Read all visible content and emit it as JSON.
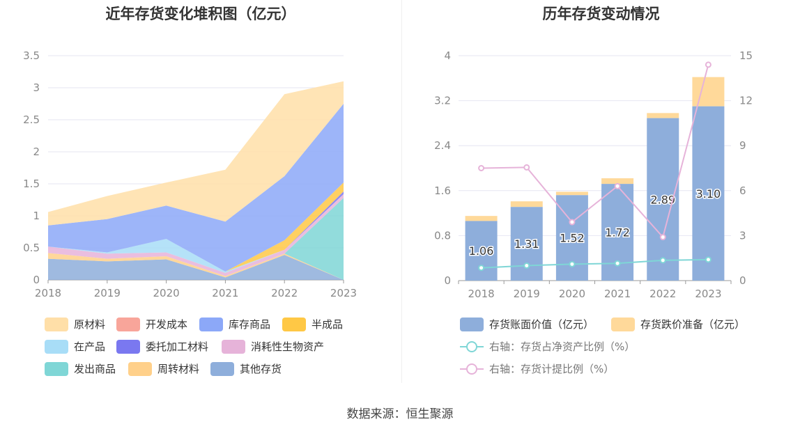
{
  "footer": "数据来源：恒生聚源",
  "chart_data": [
    {
      "type": "area",
      "stacked": true,
      "title": "近年存货变化堆积图（亿元）",
      "x": [
        "2018",
        "2019",
        "2020",
        "2021",
        "2022",
        "2023"
      ],
      "ylim": [
        0,
        3.5
      ],
      "yticks": [
        "0",
        "0.5",
        "1",
        "1.5",
        "2",
        "2.5",
        "3",
        "3.5"
      ],
      "grid": true,
      "legend_position": "bottom",
      "series": [
        {
          "name": "其他存货",
          "color": "#8EAEDB",
          "values": [
            0.33,
            0.29,
            0.32,
            0.04,
            0.39,
            0.0
          ]
        },
        {
          "name": "周转材料",
          "color": "#FFD08A",
          "values": [
            0.09,
            0.04,
            0.05,
            0.02,
            0.02,
            0.0
          ]
        },
        {
          "name": "发出商品",
          "color": "#7FD6D6",
          "values": [
            0.0,
            0.0,
            0.0,
            0.0,
            0.0,
            1.28
          ]
        },
        {
          "name": "消耗性生物资产",
          "color": "#E6B3D9",
          "values": [
            0.1,
            0.08,
            0.06,
            0.05,
            0.06,
            0.06
          ]
        },
        {
          "name": "委托加工材料",
          "color": "#7A78F0",
          "values": [
            0.0,
            0.0,
            0.0,
            0.0,
            0.0,
            0.04
          ]
        },
        {
          "name": "在产品",
          "color": "#A8DDF7",
          "values": [
            0.0,
            0.02,
            0.21,
            0.02,
            0.0,
            0.0
          ]
        },
        {
          "name": "半成品",
          "color": "#FFC845",
          "values": [
            0.0,
            0.0,
            0.0,
            0.0,
            0.15,
            0.14
          ]
        },
        {
          "name": "库存商品",
          "color": "#8CA8F8",
          "values": [
            0.33,
            0.52,
            0.52,
            0.78,
            1.0,
            1.23
          ]
        },
        {
          "name": "开发成本",
          "color": "#F8A59A",
          "values": [
            0.0,
            0.0,
            0.0,
            0.0,
            0.0,
            0.0
          ]
        },
        {
          "name": "原材料",
          "color": "#FFDFA8",
          "values": [
            0.21,
            0.36,
            0.36,
            0.81,
            1.28,
            0.35
          ]
        }
      ],
      "legend_order": [
        "原材料",
        "开发成本",
        "库存商品",
        "半成品",
        "在产品",
        "委托加工材料",
        "消耗性生物资产",
        "发出商品",
        "周转材料",
        "其他存货"
      ]
    },
    {
      "type": "bar",
      "title": "历年存货变动情况",
      "categories": [
        "2018",
        "2019",
        "2020",
        "2021",
        "2022",
        "2023"
      ],
      "ylim": [
        0,
        4
      ],
      "yticks": [
        "0",
        "0.8",
        "1.6",
        "2.4",
        "3.2",
        "4"
      ],
      "y2lim": [
        0,
        15
      ],
      "y2ticks": [
        "0",
        "3",
        "6",
        "9",
        "12",
        "15"
      ],
      "grid": true,
      "legend_position": "bottom",
      "series": [
        {
          "name": "存货账面价值（亿元）",
          "color": "#8EAEDB",
          "stack": "a",
          "values": [
            1.06,
            1.31,
            1.52,
            1.72,
            2.89,
            3.1
          ],
          "labels": [
            "1.06",
            "1.31",
            "1.52",
            "1.72",
            "2.89",
            "3.10"
          ]
        },
        {
          "name": "存货跌价准备（亿元）",
          "color": "#FFD99A",
          "stack": "a",
          "values": [
            0.09,
            0.1,
            0.06,
            0.1,
            0.09,
            0.52
          ]
        },
        {
          "name": "右轴：存货占净资产比例（%）",
          "color": "#7FD6D6",
          "axis": "right",
          "type": "line",
          "values": [
            0.85,
            1.0,
            1.1,
            1.15,
            1.35,
            1.4
          ]
        },
        {
          "name": "右轴：存货计提比例（%）",
          "color": "#E6B3D9",
          "axis": "right",
          "type": "line",
          "values": [
            7.5,
            7.55,
            3.9,
            6.3,
            2.9,
            14.4
          ]
        }
      ]
    }
  ]
}
